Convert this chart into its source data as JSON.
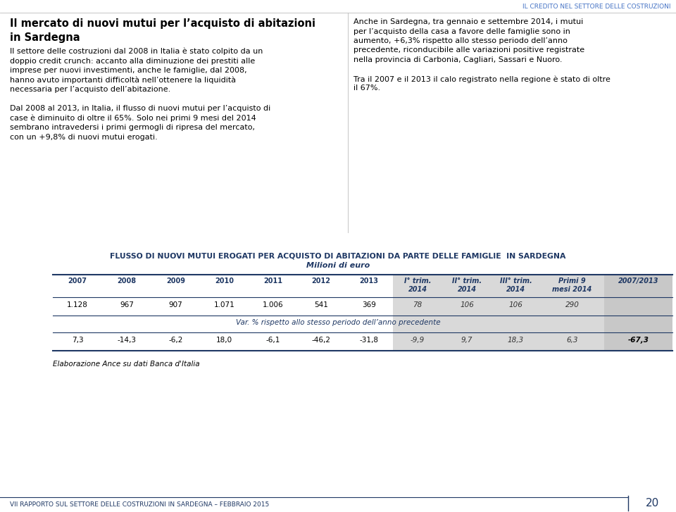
{
  "page_bg": "#ffffff",
  "top_header_text": "IL CREDITO NEL SETTORE DELLE COSTRUZIONI",
  "top_header_color": "#4472C4",
  "footer_text": "VII RAPPORTO SUL SETTORE DELLE COSTRUZIONI IN SARDEGNA – FEBBRAIO 2015",
  "footer_page": "20",
  "left_col_title_line1": "Il mercato di nuovi mutui per l’acquisto di abitazioni",
  "left_col_title_line2": "in Sardegna",
  "left_col_body_lines": [
    "Il settore delle costruzioni dal 2008 in Italia è stato colpito da un",
    "doppio credit crunch: accanto alla diminuzione dei prestiti alle",
    "imprese per nuovi investimenti, anche le famiglie, dal 2008,",
    "hanno avuto importanti difficoltà nell’ottenere la liquidità",
    "necessaria per l’acquisto dell’abitazione.",
    "",
    "Dal 2008 al 2013, in Italia, il flusso di nuovi mutui per l’acquisto di",
    "case è diminuito di oltre il 65%. Solo nei primi 9 mesi del 2014",
    "sembrano intravedersi i primi germogli di ripresa del mercato,",
    "con un +9,8% di nuovi mutui erogati."
  ],
  "right_col_body_lines": [
    "Anche in Sardegna, tra gennaio e settembre 2014, i mutui",
    "per l’acquisto della casa a favore delle famiglie sono in",
    "aumento, +6,3% rispetto allo stesso periodo dell’anno",
    "precedente, riconducibile alle variazioni positive registrate",
    "nella provincia di Carbonia, Cagliari, Sassari e Nuoro.",
    "",
    "Tra il 2007 e il 2013 il calo registrato nella regione è stato di oltre",
    "il 67%."
  ],
  "table_title": "FLUSSO DI NUOVI MUTUI EROGATI PER ACQUISTO DI ABITAZIONI DA PARTE DELLE FAMIGLIE  IN SARDEGNA",
  "table_subtitle": "Milioni di euro",
  "col_headers": [
    "2007",
    "2008",
    "2009",
    "2010",
    "2011",
    "2012",
    "2013",
    "I° trim.\n2014",
    "II° trim.\n2014",
    "III° trim.\n2014",
    "Primi 9\nmesi 2014",
    "2007/2013"
  ],
  "row1_values": [
    "1.128",
    "967",
    "907",
    "1.071",
    "1.006",
    "541",
    "369",
    "78",
    "106",
    "106",
    "290",
    ""
  ],
  "var_label": "Var. % rispetto allo stesso periodo dell’anno precedente",
  "row2_values": [
    "7,3",
    "-14,3",
    "-6,2",
    "18,0",
    "-6,1",
    "-46,2",
    "-31,8",
    "-9,9",
    "9,7",
    "18,3",
    "6,3",
    "-67,3"
  ],
  "footnote": "Elaborazione Ance su dati Banca d'Italia",
  "title_color": "#1F3864",
  "table_line_color": "#1F3864",
  "shaded_col_color": "#D9D9D9",
  "last_col_shaded": "#C8C8C8"
}
